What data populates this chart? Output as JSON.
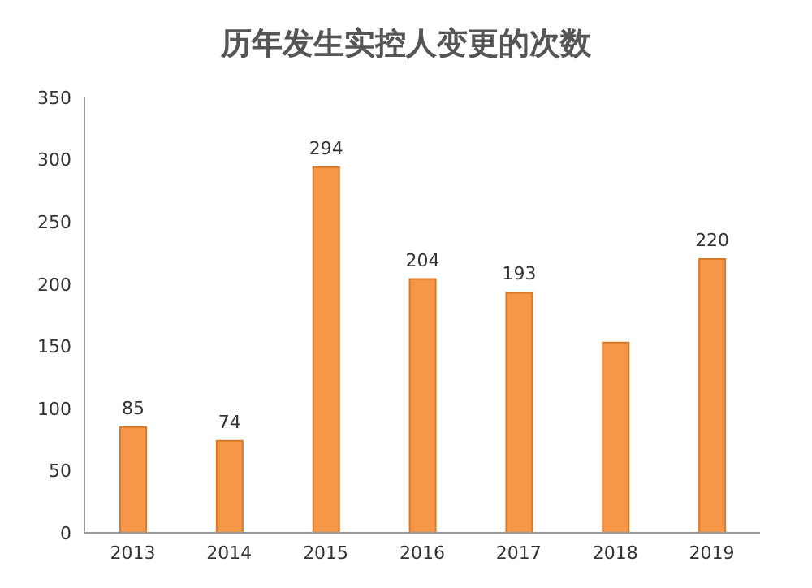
{
  "chart_data": {
    "type": "bar",
    "title": "历年发生实控人变更的次数",
    "categories": [
      "2013",
      "2014",
      "2015",
      "2016",
      "2017",
      "2018",
      "2019"
    ],
    "values": [
      85,
      74,
      294,
      204,
      193,
      153,
      220
    ],
    "value_labels": [
      "85",
      "74",
      "294",
      "204",
      "193",
      null,
      "220"
    ],
    "color": "#f79646",
    "ylim": [
      0,
      350
    ],
    "yticks": [
      0,
      50,
      100,
      150,
      200,
      250,
      300,
      350
    ],
    "grid": false
  }
}
